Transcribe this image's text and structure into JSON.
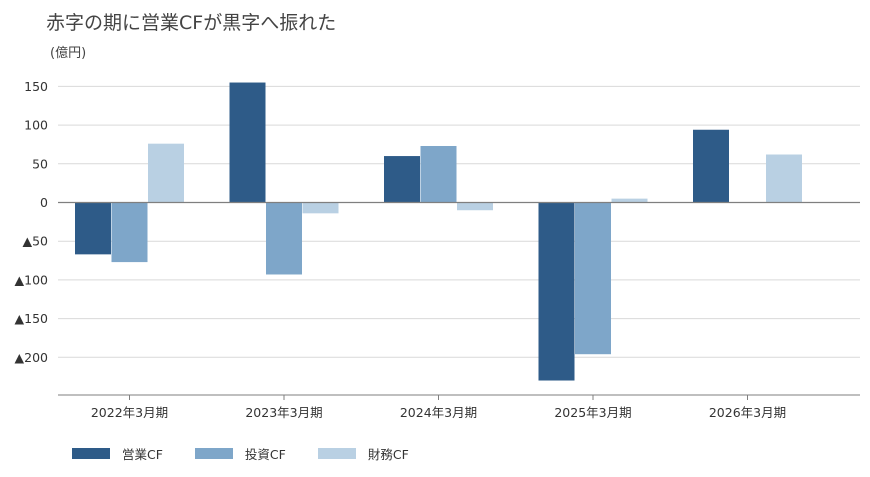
{
  "header": {
    "title": "赤字の期に営業CFが黒字へ振れた",
    "unit": "(億円)"
  },
  "colors": {
    "operating": "#2e5b88",
    "investing": "#7ea6c9",
    "financing": "#b9d0e3",
    "grid": "#d9d9d9",
    "axis": "#7f7f7f"
  },
  "chart_data": {
    "type": "bar",
    "title": "赤字の期に営業CFが黒字へ振れた",
    "ylabel": "(億円)",
    "xlabel": "",
    "categories": [
      "2022年3月期",
      "2023年3月期",
      "2024年3月期",
      "2025年3月期",
      "2026年3月期"
    ],
    "series": [
      {
        "name": "営業CF",
        "values": [
          -67,
          155,
          60,
          -230,
          94
        ]
      },
      {
        "name": "投資CF",
        "values": [
          -77,
          -93,
          73,
          -196,
          null
        ]
      },
      {
        "name": "財務CF",
        "values": [
          76,
          -14,
          -10,
          5,
          62
        ]
      }
    ],
    "ylim": [
      -250,
      160
    ],
    "yticks": [
      150,
      100,
      50,
      0,
      -50,
      -100,
      -150,
      -200
    ],
    "ytick_labels": [
      "150",
      "100",
      "50",
      "0",
      "▲50",
      "▲100",
      "▲150",
      "▲200"
    ],
    "grid": true,
    "legend_position": "bottom-left"
  }
}
